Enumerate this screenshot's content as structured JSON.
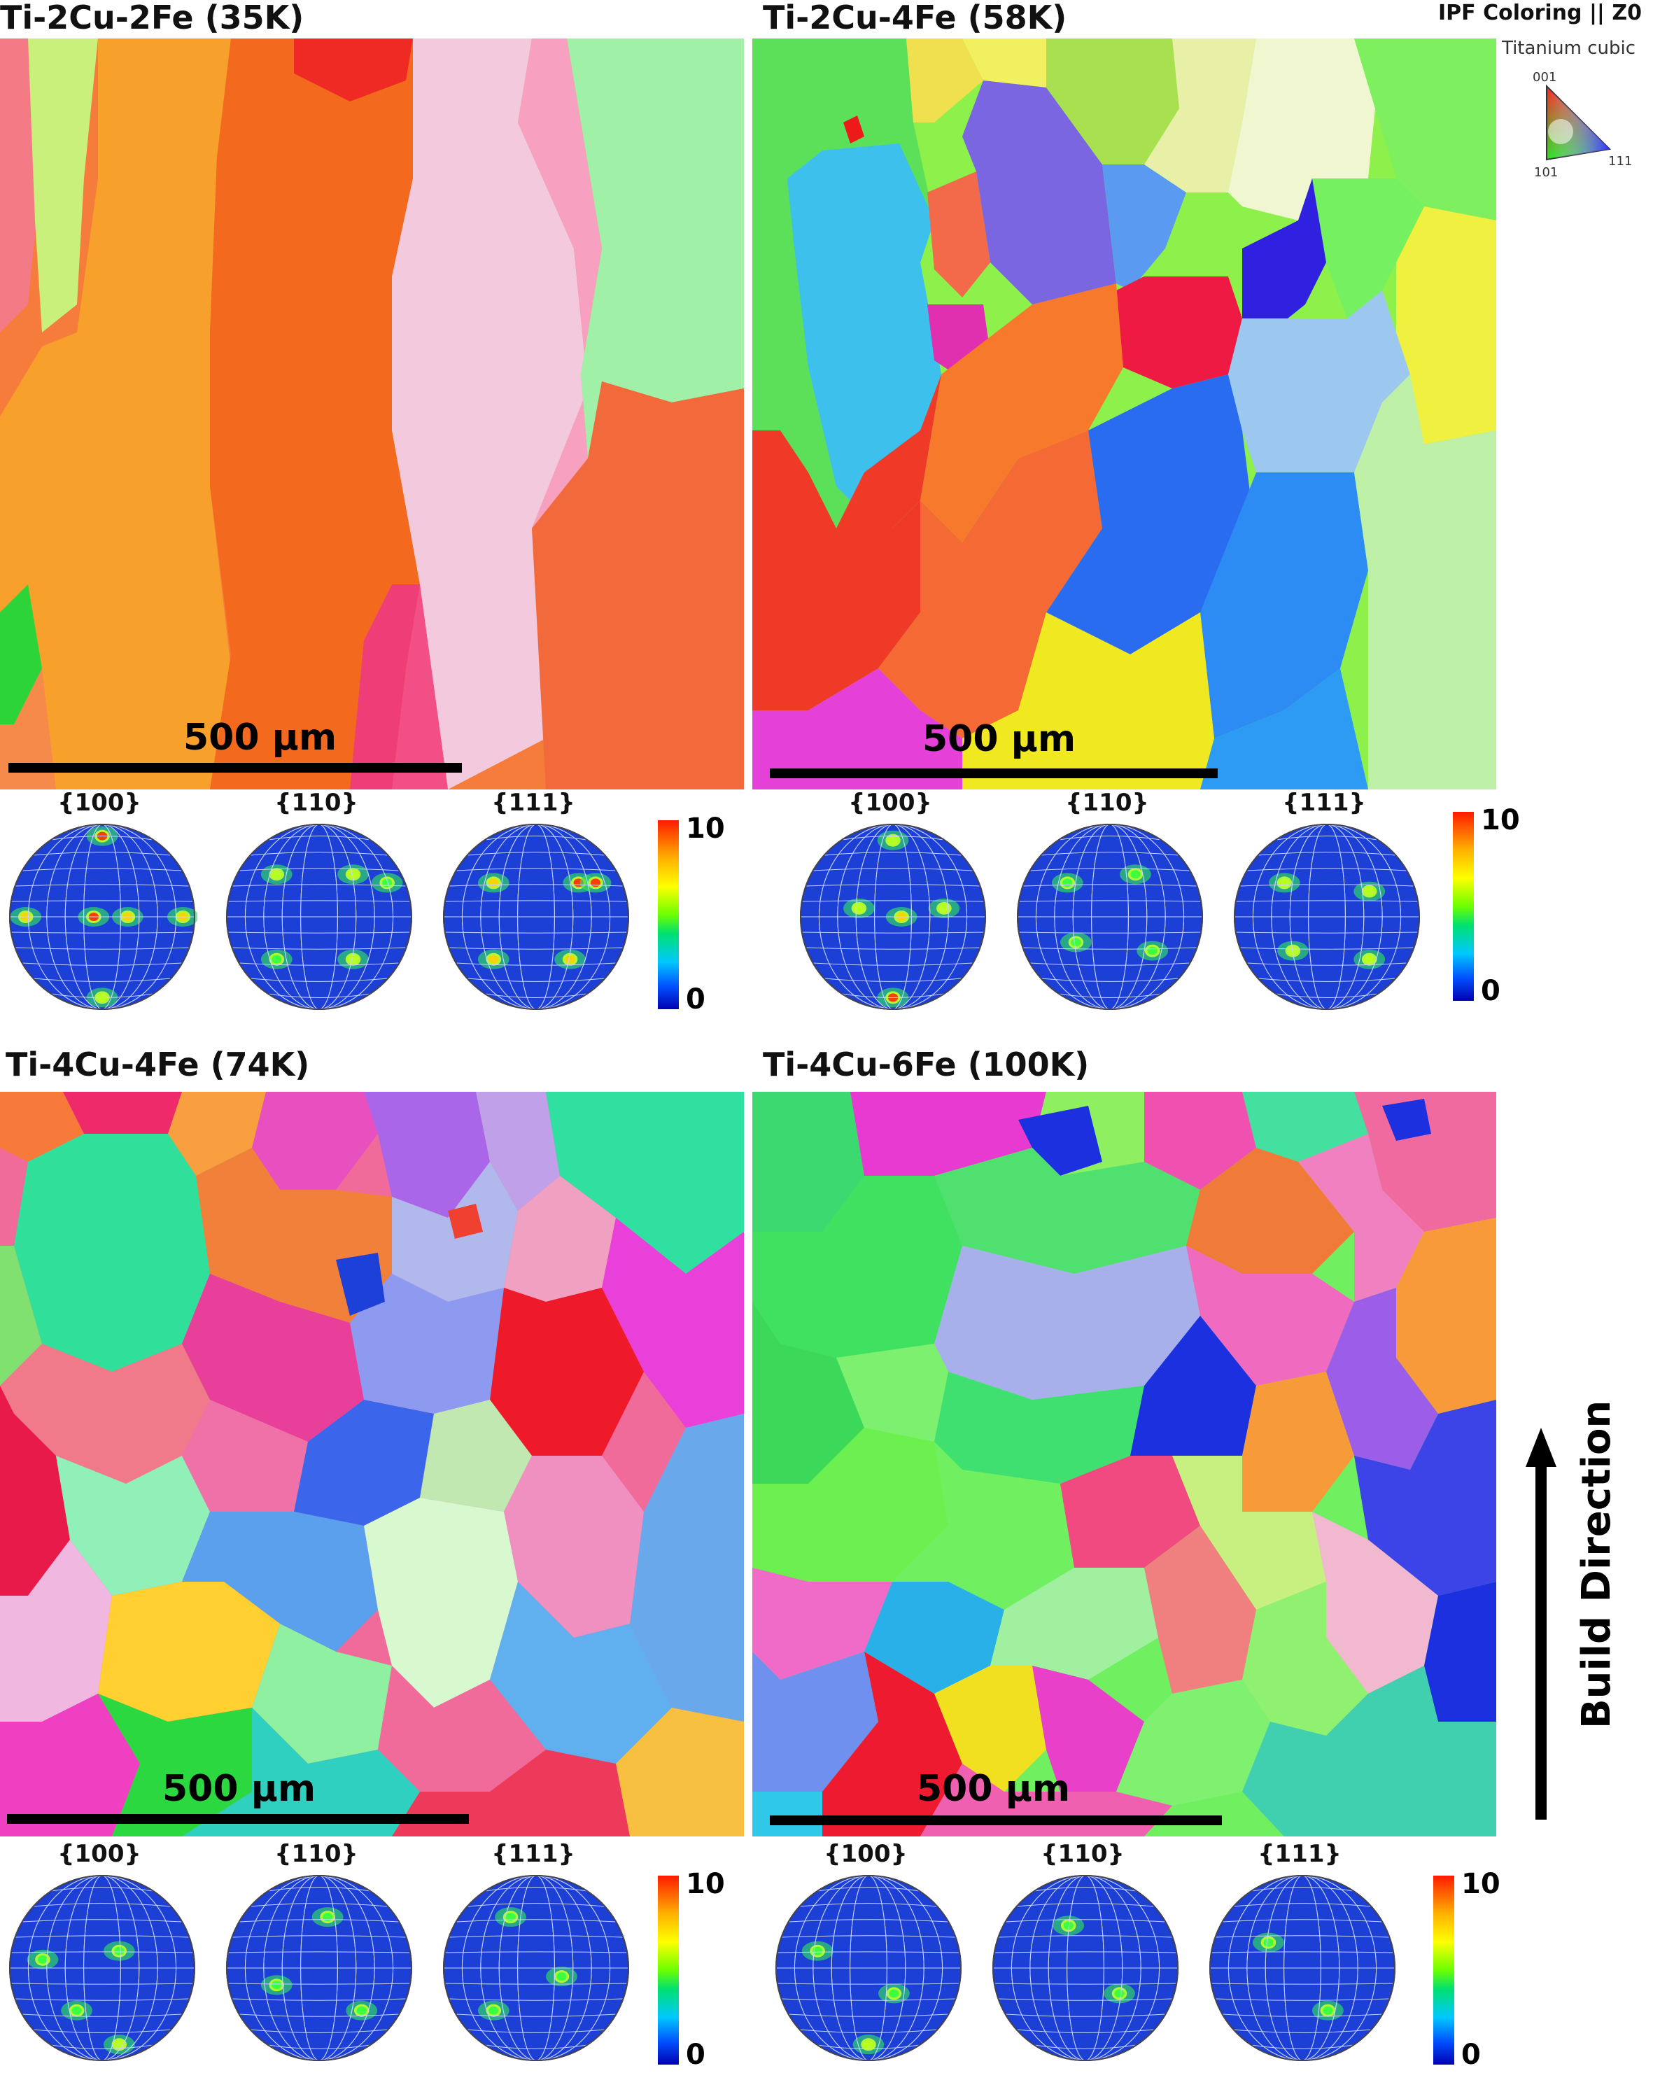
{
  "panels": [
    {
      "title": "Ti-2Cu-2Fe (35K)",
      "scale": "500 µm",
      "pole_figures": [
        "{100}",
        "{110}",
        "{111}"
      ],
      "cbar_max": "10",
      "cbar_min": "0"
    },
    {
      "title": "Ti-2Cu-4Fe (58K)",
      "scale": "500 µm",
      "pole_figures": [
        "{100}",
        "{110}",
        "{111}"
      ],
      "cbar_max": "10",
      "cbar_min": "0"
    },
    {
      "title": "Ti-4Cu-4Fe (74K)",
      "scale": "500 µm",
      "pole_figures": [
        "{100}",
        "{110}",
        "{111}"
      ],
      "cbar_max": "10",
      "cbar_min": "0"
    },
    {
      "title": "Ti-4Cu-6Fe (100K)",
      "scale": "500 µm",
      "pole_figures": [
        "{100}",
        "{110}",
        "{111}"
      ],
      "cbar_max": "10",
      "cbar_min": "0"
    }
  ],
  "legend": {
    "title": "IPF Coloring || Z0",
    "subtitle": "Titanium cubic",
    "corner_001": "001",
    "corner_101": "101",
    "corner_111": "111"
  },
  "build_direction": "Build Direction",
  "colors": {
    "pf_background": "#1c3fd6",
    "pf_grid": "#c8d4ff",
    "grain_boundary": "#000000"
  }
}
